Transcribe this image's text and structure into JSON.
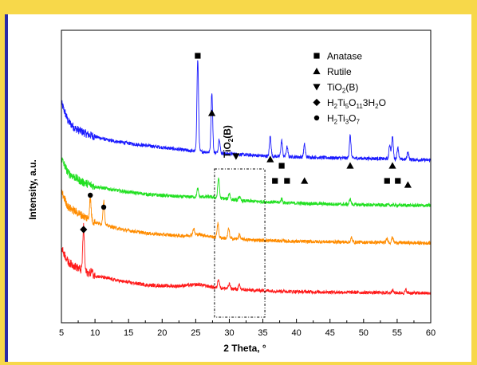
{
  "chart_data": {
    "type": "line",
    "xlabel": "2 Theta, °",
    "ylabel": "Intensity, a.u.",
    "xlim": [
      5,
      60
    ],
    "x_ticks": [
      5,
      10,
      15,
      20,
      25,
      30,
      35,
      40,
      45,
      50,
      55,
      60
    ],
    "y_ticks_labeled": false,
    "grid": false,
    "legend_position": "top-right",
    "legend": [
      {
        "marker": "square",
        "label": "Anatase"
      },
      {
        "marker": "triangle-up",
        "label": "Rutile"
      },
      {
        "marker": "triangle-down",
        "label": "TiO",
        "sub": "2",
        "tail": "(B)"
      },
      {
        "marker": "diamond",
        "label_parts": [
          "H",
          "2",
          "Ti",
          "5",
          "O",
          "11",
          "3H",
          "2",
          "O"
        ]
      },
      {
        "marker": "circle",
        "label_parts": [
          "H",
          "2",
          "Ti",
          "3",
          "O",
          "7"
        ]
      }
    ],
    "region_annotation": {
      "label": "TiO",
      "sub": "2",
      "tail": "(B)",
      "x_range": [
        27.8,
        35.3
      ],
      "style": "dash-dot box"
    },
    "series": [
      {
        "color": "#1a1aff",
        "baseline_points": [
          [
            5,
            80
          ],
          [
            6,
            57
          ],
          [
            7,
            48
          ],
          [
            9,
            40
          ],
          [
            12,
            33
          ],
          [
            16,
            28
          ],
          [
            20,
            24
          ],
          [
            24,
            20
          ],
          [
            30,
            16
          ],
          [
            36,
            13
          ],
          [
            45,
            11
          ],
          [
            52,
            10
          ],
          [
            60,
            8
          ]
        ],
        "peaks": [
          [
            25.3,
            115
          ],
          [
            27.4,
            75
          ],
          [
            28.5,
            18
          ],
          [
            36.1,
            25
          ],
          [
            37.8,
            20
          ],
          [
            38.6,
            12
          ],
          [
            41.2,
            16
          ],
          [
            48.0,
            28
          ],
          [
            53.9,
            18
          ],
          [
            54.3,
            28
          ],
          [
            55.1,
            15
          ],
          [
            56.6,
            10
          ]
        ]
      },
      {
        "color": "#22e022",
        "baseline_points": [
          [
            5,
            65
          ],
          [
            6,
            47
          ],
          [
            8,
            36
          ],
          [
            10,
            30
          ],
          [
            14,
            24
          ],
          [
            18,
            20
          ],
          [
            23,
            17
          ],
          [
            27,
            17
          ],
          [
            32,
            12
          ],
          [
            40,
            9
          ],
          [
            50,
            7
          ],
          [
            60,
            6
          ]
        ],
        "peaks": [
          [
            25.3,
            10
          ],
          [
            28.4,
            25
          ],
          [
            30.0,
            8
          ],
          [
            31.5,
            5
          ],
          [
            37.8,
            5
          ],
          [
            48.0,
            7
          ]
        ]
      },
      {
        "color": "#ff8c00",
        "baseline_points": [
          [
            5,
            70
          ],
          [
            6,
            50
          ],
          [
            8,
            40
          ],
          [
            10,
            31
          ],
          [
            14,
            22
          ],
          [
            18,
            17
          ],
          [
            23,
            14
          ],
          [
            25.5,
            16
          ],
          [
            28,
            12
          ],
          [
            33,
            9
          ],
          [
            40,
            7
          ],
          [
            50,
            6
          ],
          [
            60,
            5
          ]
        ],
        "peaks": [
          [
            9.3,
            27
          ],
          [
            11.3,
            30
          ],
          [
            24.7,
            8
          ],
          [
            28.3,
            18
          ],
          [
            29.9,
            12
          ],
          [
            31.5,
            6
          ],
          [
            48.2,
            5
          ],
          [
            53.5,
            5
          ],
          [
            54.3,
            7
          ]
        ]
      },
      {
        "color": "#ff1a1a",
        "baseline_points": [
          [
            5,
            60
          ],
          [
            6,
            42
          ],
          [
            8,
            32
          ],
          [
            10,
            25
          ],
          [
            14,
            18
          ],
          [
            18,
            13
          ],
          [
            22,
            12
          ],
          [
            25.5,
            14
          ],
          [
            28,
            10
          ],
          [
            33,
            7
          ],
          [
            40,
            5
          ],
          [
            50,
            4
          ],
          [
            60,
            3
          ]
        ],
        "peaks": [
          [
            8.3,
            55
          ],
          [
            9.5,
            5
          ],
          [
            28.4,
            12
          ],
          [
            30.0,
            6
          ],
          [
            31.5,
            5
          ],
          [
            54.3,
            4
          ],
          [
            56.3,
            4
          ]
        ]
      }
    ],
    "offsets": [
      176,
      121,
      75,
      14
    ],
    "markers": [
      {
        "type": "square",
        "x": 25.3,
        "row": 0
      },
      {
        "type": "triangle-up",
        "x": 27.4,
        "row": 1
      },
      {
        "type": "triangle-down",
        "x": 31.0,
        "row": 2
      },
      {
        "type": "triangle-up",
        "x": 36.1,
        "row": 3
      },
      {
        "type": "square",
        "x": 37.8,
        "row": 4
      },
      {
        "type": "square",
        "x": 36.8,
        "row": 5
      },
      {
        "type": "square",
        "x": 38.6,
        "row": 5
      },
      {
        "type": "triangle-up",
        "x": 41.2,
        "row": 5
      },
      {
        "type": "triangle-up",
        "x": 48.0,
        "row": 4
      },
      {
        "type": "triangle-up",
        "x": 54.3,
        "row": 4
      },
      {
        "type": "square",
        "x": 53.5,
        "row": 5
      },
      {
        "type": "square",
        "x": 55.1,
        "row": 5
      },
      {
        "type": "triangle-up",
        "x": 56.6,
        "row": 6
      },
      {
        "type": "circle",
        "x": 9.3,
        "row": 7
      },
      {
        "type": "circle",
        "x": 11.3,
        "row": 8
      },
      {
        "type": "diamond",
        "x": 8.3,
        "row": 9
      }
    ]
  }
}
